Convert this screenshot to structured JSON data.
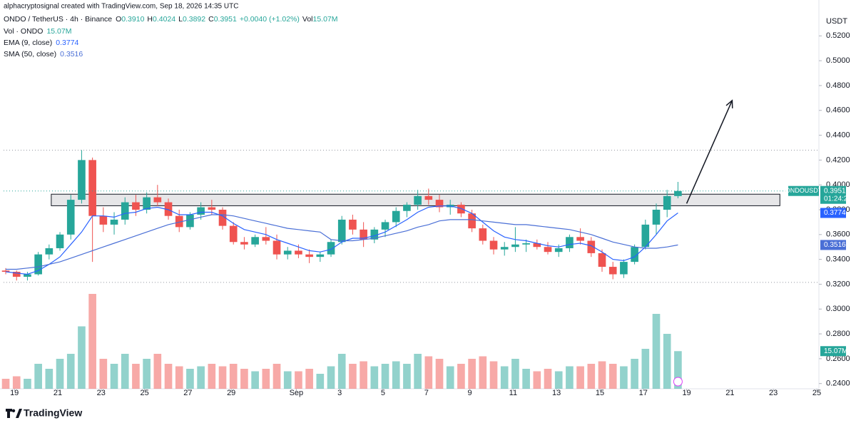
{
  "header": {
    "attribution": "alphacryptosignal created with TradingView.com, Sep 18, 2026 14:35 UTC"
  },
  "legend": {
    "symbol": "ONDO / TetherUS · 4h · Binance",
    "ohlc": [
      {
        "label": "O",
        "value": "0.3910"
      },
      {
        "label": "H",
        "value": "0.4024"
      },
      {
        "label": "L",
        "value": "0.3892"
      },
      {
        "label": "C",
        "value": "0.3951"
      }
    ],
    "change": "+0.0040 (+1.02%)",
    "volume_label": "Vol",
    "volume_value": "15.07M"
  },
  "brand": "TradingView",
  "chart_data": {
    "type": "candlestick",
    "currency": "USDT",
    "symbol_tag": "ONDOUSDT",
    "countdown": "01:24:26",
    "up_color": "#26a69a",
    "down_color": "#ef5350",
    "xlim": [
      -0.5,
      37.1
    ],
    "xticks": [
      {
        "value": 0,
        "label": "19"
      },
      {
        "value": 2,
        "label": "21"
      },
      {
        "value": 4,
        "label": "23"
      },
      {
        "value": 6,
        "label": "25"
      },
      {
        "value": 8,
        "label": "27"
      },
      {
        "value": 10,
        "label": "29"
      },
      {
        "value": 13,
        "label": "Sep"
      },
      {
        "value": 15,
        "label": "3"
      },
      {
        "value": 17,
        "label": "5"
      },
      {
        "value": 19,
        "label": "7"
      },
      {
        "value": 21,
        "label": "9"
      },
      {
        "value": 23,
        "label": "11"
      },
      {
        "value": 25,
        "label": "13"
      },
      {
        "value": 27,
        "label": "15"
      },
      {
        "value": 29,
        "label": "17"
      },
      {
        "value": 31,
        "label": "19"
      },
      {
        "value": 33,
        "label": "21"
      },
      {
        "value": 35,
        "label": "23"
      },
      {
        "value": 37,
        "label": "25"
      }
    ],
    "ylim": [
      0.2358,
      0.5489
    ],
    "yticks": [
      {
        "value": 0.24,
        "label": "0.2400"
      },
      {
        "value": 0.26,
        "label": "0.2600"
      },
      {
        "value": 0.28,
        "label": "0.2800"
      },
      {
        "value": 0.3,
        "label": "0.3000"
      },
      {
        "value": 0.32,
        "label": "0.3200"
      },
      {
        "value": 0.34,
        "label": "0.3400"
      },
      {
        "value": 0.36,
        "label": "0.3600"
      },
      {
        "value": 0.38,
        "label": "0.3800"
      },
      {
        "value": 0.4,
        "label": "0.4000"
      },
      {
        "value": 0.42,
        "label": "0.4200"
      },
      {
        "value": 0.44,
        "label": "0.4400"
      },
      {
        "value": 0.46,
        "label": "0.4600"
      },
      {
        "value": 0.48,
        "label": "0.4800"
      },
      {
        "value": 0.5,
        "label": "0.5000"
      },
      {
        "value": 0.52,
        "label": "0.5200"
      }
    ],
    "grid": false,
    "x": [
      -0.4,
      0.1,
      0.6,
      1.1,
      1.6,
      2.1,
      2.6,
      3.1,
      3.6,
      4.1,
      4.6,
      5.1,
      5.6,
      6.1,
      6.6,
      7.1,
      7.6,
      8.1,
      8.6,
      9.1,
      9.6,
      10.1,
      10.6,
      11.1,
      11.6,
      12.1,
      12.6,
      13.1,
      13.6,
      14.1,
      14.6,
      15.1,
      15.6,
      16.1,
      16.6,
      17.1,
      17.6,
      18.1,
      18.6,
      19.1,
      19.6,
      20.1,
      20.6,
      21.1,
      21.6,
      22.1,
      22.6,
      23.1,
      23.6,
      24.1,
      24.6,
      25.1,
      25.6,
      26.1,
      26.6,
      27.1,
      27.6,
      28.1,
      28.6,
      29.1,
      29.6,
      30.1,
      30.6
    ],
    "open": [
      0.331,
      0.33,
      0.326,
      0.328,
      0.344,
      0.349,
      0.36,
      0.388,
      0.42,
      0.375,
      0.368,
      0.372,
      0.386,
      0.38,
      0.39,
      0.386,
      0.375,
      0.366,
      0.376,
      0.382,
      0.38,
      0.367,
      0.354,
      0.352,
      0.358,
      0.355,
      0.344,
      0.347,
      0.344,
      0.342,
      0.344,
      0.354,
      0.372,
      0.364,
      0.356,
      0.364,
      0.37,
      0.379,
      0.384,
      0.391,
      0.388,
      0.382,
      0.384,
      0.377,
      0.365,
      0.355,
      0.348,
      0.35,
      0.352,
      0.353,
      0.35,
      0.346,
      0.349,
      0.358,
      0.355,
      0.345,
      0.334,
      0.328,
      0.338,
      0.35,
      0.368,
      0.38,
      0.391
    ],
    "high": [
      0.333,
      0.331,
      0.33,
      0.346,
      0.352,
      0.362,
      0.392,
      0.428,
      0.422,
      0.382,
      0.378,
      0.39,
      0.392,
      0.394,
      0.4,
      0.389,
      0.38,
      0.378,
      0.386,
      0.388,
      0.382,
      0.37,
      0.358,
      0.36,
      0.366,
      0.36,
      0.35,
      0.352,
      0.348,
      0.346,
      0.356,
      0.375,
      0.376,
      0.37,
      0.366,
      0.372,
      0.382,
      0.386,
      0.396,
      0.397,
      0.392,
      0.388,
      0.386,
      0.38,
      0.368,
      0.358,
      0.354,
      0.366,
      0.356,
      0.356,
      0.354,
      0.352,
      0.36,
      0.365,
      0.358,
      0.348,
      0.338,
      0.34,
      0.352,
      0.372,
      0.385,
      0.396,
      0.4024
    ],
    "low": [
      0.328,
      0.323,
      0.323,
      0.327,
      0.34,
      0.347,
      0.356,
      0.385,
      0.338,
      0.362,
      0.36,
      0.368,
      0.375,
      0.377,
      0.383,
      0.372,
      0.362,
      0.364,
      0.372,
      0.376,
      0.364,
      0.352,
      0.348,
      0.35,
      0.352,
      0.34,
      0.34,
      0.341,
      0.337,
      0.338,
      0.342,
      0.352,
      0.36,
      0.35,
      0.353,
      0.358,
      0.366,
      0.374,
      0.38,
      0.384,
      0.378,
      0.376,
      0.374,
      0.362,
      0.352,
      0.344,
      0.343,
      0.346,
      0.346,
      0.348,
      0.344,
      0.342,
      0.346,
      0.352,
      0.342,
      0.33,
      0.324,
      0.325,
      0.336,
      0.348,
      0.36,
      0.374,
      0.3892
    ],
    "close": [
      0.33,
      0.326,
      0.328,
      0.344,
      0.349,
      0.36,
      0.388,
      0.42,
      0.375,
      0.368,
      0.372,
      0.386,
      0.38,
      0.39,
      0.386,
      0.375,
      0.366,
      0.376,
      0.382,
      0.38,
      0.367,
      0.354,
      0.352,
      0.358,
      0.355,
      0.344,
      0.347,
      0.344,
      0.342,
      0.344,
      0.354,
      0.372,
      0.364,
      0.356,
      0.364,
      0.37,
      0.379,
      0.384,
      0.391,
      0.388,
      0.382,
      0.384,
      0.377,
      0.365,
      0.355,
      0.348,
      0.35,
      0.352,
      0.353,
      0.35,
      0.346,
      0.349,
      0.358,
      0.355,
      0.345,
      0.334,
      0.328,
      0.338,
      0.35,
      0.368,
      0.38,
      0.391,
      0.3951
    ],
    "volume_name": "Vol · ONDO",
    "volume_label": "15.07M",
    "vlim": [
      0,
      40
    ],
    "volume": [
      4,
      5,
      4,
      10,
      8,
      12,
      14,
      25,
      38,
      12,
      10,
      14,
      10,
      12,
      14,
      10,
      9,
      8,
      9,
      10,
      9,
      10,
      8,
      7,
      8,
      10,
      7,
      7,
      8,
      6,
      9,
      14,
      10,
      11,
      9,
      10,
      11,
      10,
      14,
      13,
      12,
      9,
      10,
      12,
      13,
      11,
      9,
      12,
      8,
      7,
      8,
      7,
      9,
      9,
      10,
      11,
      10,
      9,
      12,
      16,
      30,
      22,
      15.07
    ],
    "series": [
      {
        "name": "EMA (9, close)",
        "color": "#2962ff",
        "values": [
          0.33,
          0.329,
          0.328,
          0.331,
          0.336,
          0.342,
          0.352,
          0.362,
          0.375,
          0.375,
          0.374,
          0.377,
          0.378,
          0.381,
          0.382,
          0.38,
          0.376,
          0.376,
          0.378,
          0.378,
          0.375,
          0.369,
          0.364,
          0.362,
          0.36,
          0.356,
          0.353,
          0.35,
          0.347,
          0.346,
          0.348,
          0.354,
          0.357,
          0.357,
          0.359,
          0.362,
          0.367,
          0.372,
          0.378,
          0.382,
          0.383,
          0.383,
          0.381,
          0.377,
          0.37,
          0.363,
          0.358,
          0.356,
          0.355,
          0.353,
          0.351,
          0.35,
          0.352,
          0.353,
          0.351,
          0.346,
          0.34,
          0.339,
          0.342,
          0.35,
          0.36,
          0.371,
          0.3774
        ]
      },
      {
        "name": "SMA (50, close)",
        "color": "#4a6fd6",
        "values": [
          0.332,
          0.332,
          0.333,
          0.334,
          0.336,
          0.338,
          0.341,
          0.344,
          0.347,
          0.35,
          0.353,
          0.356,
          0.359,
          0.362,
          0.365,
          0.368,
          0.37,
          0.372,
          0.374,
          0.376,
          0.376,
          0.375,
          0.373,
          0.371,
          0.369,
          0.367,
          0.365,
          0.364,
          0.363,
          0.362,
          0.356,
          0.355,
          0.355,
          0.356,
          0.357,
          0.359,
          0.361,
          0.363,
          0.366,
          0.368,
          0.371,
          0.372,
          0.372,
          0.372,
          0.371,
          0.37,
          0.369,
          0.368,
          0.368,
          0.367,
          0.366,
          0.365,
          0.364,
          0.362,
          0.36,
          0.357,
          0.354,
          0.352,
          0.35,
          0.349,
          0.349,
          0.35,
          0.3516
        ]
      }
    ],
    "zone": {
      "low": 0.3832,
      "high": 0.3925,
      "x": [
        1.7,
        35.3
      ]
    },
    "levels": [
      0.428,
      0.3215
    ],
    "arrow": {
      "from": [
        31.0,
        0.385
      ],
      "to": [
        33.1,
        0.468
      ]
    }
  }
}
